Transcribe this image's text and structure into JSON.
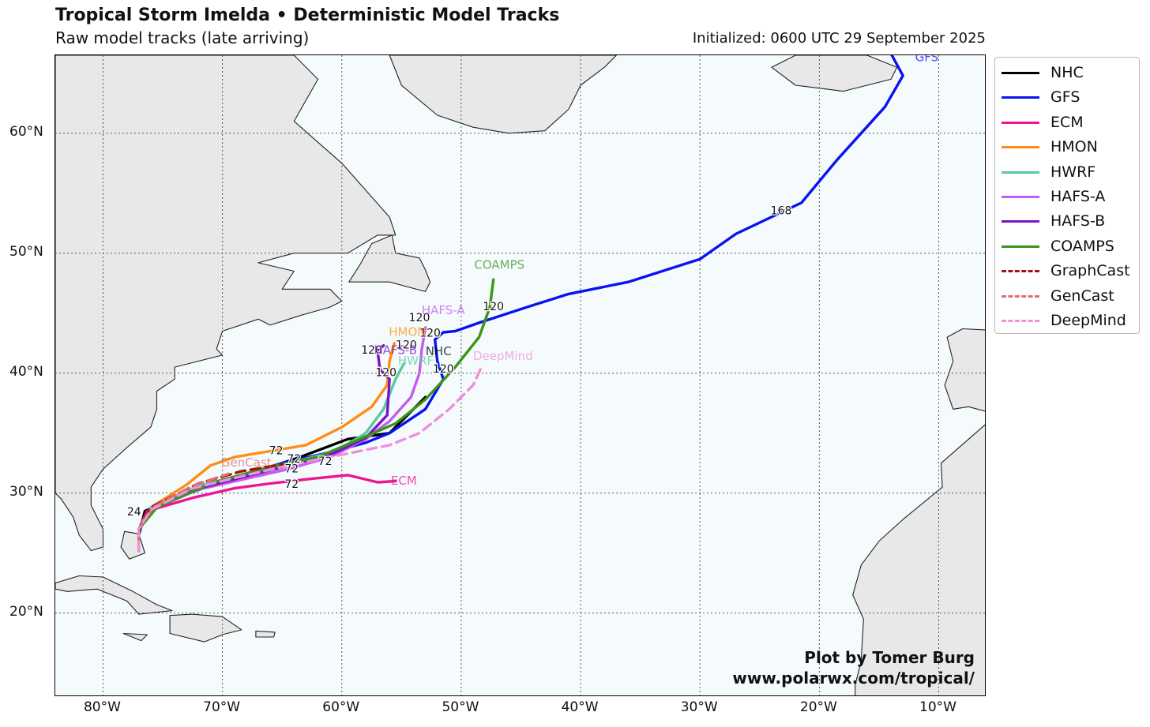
{
  "header": {
    "title": "Tropical Storm Imelda • Deterministic Model Tracks",
    "subtitle": "Raw model tracks (late arriving)",
    "initialized": "Initialized: 0600 UTC 29 September 2025"
  },
  "axes": {
    "lat_labels": [
      "20°N",
      "30°N",
      "40°N",
      "50°N",
      "60°N"
    ],
    "lon_labels": [
      "80°W",
      "70°W",
      "60°W",
      "50°W",
      "40°W",
      "30°W",
      "20°W",
      "10°W"
    ],
    "lon_range": [
      -84,
      -6
    ],
    "lat_range": [
      13,
      66.5
    ],
    "grid": "dotted"
  },
  "legend": {
    "items": [
      {
        "name": "NHC",
        "color": "#000000",
        "style": "solid"
      },
      {
        "name": "GFS",
        "color": "#0a12f0",
        "style": "solid"
      },
      {
        "name": "ECM",
        "color": "#ee1493",
        "style": "solid"
      },
      {
        "name": "HMON",
        "color": "#ff8c14",
        "style": "solid"
      },
      {
        "name": "HWRF",
        "color": "#5cc9a0",
        "style": "solid"
      },
      {
        "name": "HAFS-A",
        "color": "#c45cf0",
        "style": "solid"
      },
      {
        "name": "HAFS-B",
        "color": "#7a14c4",
        "style": "solid"
      },
      {
        "name": "COAMPS",
        "color": "#3a9418",
        "style": "solid"
      },
      {
        "name": "GraphCast",
        "color": "#a01414",
        "style": "dashed"
      },
      {
        "name": "GenCast",
        "color": "#dc6e78",
        "style": "dashed"
      },
      {
        "name": "DeepMind",
        "color": "#ee90dc",
        "style": "dashed"
      }
    ]
  },
  "credit": {
    "line1": "Plot by Tomer Burg",
    "line2": "www.polarwx.com/tropical/"
  },
  "tracks": [
    {
      "model": "NHC",
      "color": "#000000",
      "style": "solid",
      "points": [
        [
          -77.0,
          25.2
        ],
        [
          -77.0,
          26.5
        ],
        [
          -76.5,
          28.5
        ],
        [
          -72.0,
          30.5
        ],
        [
          -68.0,
          31.5
        ],
        [
          -63.5,
          33.0
        ],
        [
          -59.5,
          34.5
        ],
        [
          -56.0,
          35.0
        ],
        [
          -54.5,
          36.5
        ],
        [
          -53.0,
          38.0
        ]
      ],
      "labels": [
        {
          "text": "24",
          "lon": -77.4,
          "lat": 28.4
        },
        {
          "text": "72",
          "lon": -64.0,
          "lat": 32.8
        },
        {
          "text": "NHC",
          "lon": -51.9,
          "lat": 41.8
        }
      ]
    },
    {
      "model": "GFS",
      "color": "#0a12f0",
      "style": "solid",
      "points": [
        [
          -77.0,
          25.2
        ],
        [
          -77.0,
          27.0
        ],
        [
          -76.0,
          28.8
        ],
        [
          -70.0,
          31.0
        ],
        [
          -65.0,
          32.5
        ],
        [
          -61.0,
          33.4
        ],
        [
          -58.0,
          34.2
        ],
        [
          -56.0,
          35.0
        ],
        [
          -53.0,
          37.0
        ],
        [
          -51.5,
          39.5
        ],
        [
          -52.0,
          41.0
        ],
        [
          -52.2,
          42.8
        ],
        [
          -51.5,
          43.4
        ],
        [
          -50.5,
          43.5
        ],
        [
          -48.5,
          44.2
        ],
        [
          -44.5,
          45.5
        ],
        [
          -41.0,
          46.6
        ],
        [
          -36.0,
          47.6
        ],
        [
          -30.0,
          49.5
        ],
        [
          -27.0,
          51.6
        ],
        [
          -21.5,
          54.2
        ],
        [
          -18.5,
          57.8
        ],
        [
          -14.5,
          62.2
        ],
        [
          -13.0,
          64.8
        ],
        [
          -14.2,
          67.0
        ]
      ],
      "labels": [
        {
          "text": "72",
          "lon": -64.2,
          "lat": 32.0
        },
        {
          "text": "120",
          "lon": -51.5,
          "lat": 40.3
        },
        {
          "text": "120",
          "lon": -52.6,
          "lat": 43.3
        },
        {
          "text": "168",
          "lon": -23.2,
          "lat": 53.5
        },
        {
          "text": "GFS",
          "lon": -11.0,
          "lat": 66.3
        }
      ]
    },
    {
      "model": "ECM",
      "color": "#ee1493",
      "style": "solid",
      "points": [
        [
          -77.0,
          25.2
        ],
        [
          -77.0,
          27.0
        ],
        [
          -76.3,
          28.5
        ],
        [
          -72.5,
          29.6
        ],
        [
          -69.0,
          30.4
        ],
        [
          -66.0,
          30.8
        ],
        [
          -62.5,
          31.2
        ],
        [
          -59.5,
          31.5
        ],
        [
          -57.0,
          30.9
        ],
        [
          -55.5,
          31.0
        ]
      ],
      "labels": [
        {
          "text": "72",
          "lon": -64.2,
          "lat": 30.7
        },
        {
          "text": "ECM",
          "lon": -54.8,
          "lat": 31.0
        }
      ]
    },
    {
      "model": "HMON",
      "color": "#ff8c14",
      "style": "solid",
      "points": [
        [
          -77.0,
          25.5
        ],
        [
          -77.0,
          27.0
        ],
        [
          -76.0,
          28.8
        ],
        [
          -73.0,
          30.7
        ],
        [
          -71.0,
          32.3
        ],
        [
          -69.0,
          33.0
        ],
        [
          -66.0,
          33.5
        ],
        [
          -63.0,
          34.0
        ],
        [
          -60.0,
          35.5
        ],
        [
          -57.5,
          37.2
        ],
        [
          -56.2,
          39.0
        ],
        [
          -56.0,
          41.0
        ],
        [
          -55.6,
          42.5
        ]
      ],
      "labels": [
        {
          "text": "72",
          "lon": -65.5,
          "lat": 33.5
        },
        {
          "text": "120",
          "lon": -54.6,
          "lat": 42.3
        },
        {
          "text": "HMON",
          "lon": -54.5,
          "lat": 43.4
        }
      ]
    },
    {
      "model": "HWRF",
      "color": "#5cc9a0",
      "style": "solid",
      "points": [
        [
          -77.0,
          25.5
        ],
        [
          -77.0,
          27.0
        ],
        [
          -76.0,
          28.8
        ],
        [
          -72.0,
          30.6
        ],
        [
          -68.0,
          31.6
        ],
        [
          -64.0,
          32.6
        ],
        [
          -60.5,
          33.5
        ],
        [
          -58.0,
          35.0
        ],
        [
          -56.5,
          37.0
        ],
        [
          -55.5,
          39.5
        ],
        [
          -54.8,
          40.8
        ]
      ],
      "labels": [
        {
          "text": "HWRF",
          "lon": -53.8,
          "lat": 41.0
        }
      ]
    },
    {
      "model": "HAFS-A",
      "color": "#c45cf0",
      "style": "solid",
      "points": [
        [
          -77.0,
          25.2
        ],
        [
          -77.0,
          27.0
        ],
        [
          -76.0,
          28.6
        ],
        [
          -72.0,
          30.3
        ],
        [
          -68.0,
          31.2
        ],
        [
          -64.5,
          32.0
        ],
        [
          -61.0,
          33.0
        ],
        [
          -58.0,
          34.5
        ],
        [
          -56.0,
          36.0
        ],
        [
          -54.2,
          38.0
        ],
        [
          -53.5,
          40.0
        ],
        [
          -53.3,
          42.0
        ],
        [
          -53.0,
          43.8
        ]
      ],
      "labels": [
        {
          "text": "120",
          "lon": -53.5,
          "lat": 44.6
        },
        {
          "text": "HAFS-A",
          "lon": -51.5,
          "lat": 45.2
        }
      ]
    },
    {
      "model": "HAFS-B",
      "color": "#7a14c4",
      "style": "solid",
      "points": [
        [
          -77.0,
          25.2
        ],
        [
          -77.0,
          27.0
        ],
        [
          -76.0,
          28.6
        ],
        [
          -72.0,
          30.4
        ],
        [
          -68.0,
          31.4
        ],
        [
          -64.0,
          32.4
        ],
        [
          -60.5,
          33.4
        ],
        [
          -58.0,
          34.6
        ],
        [
          -56.2,
          36.5
        ],
        [
          -56.0,
          39.5
        ],
        [
          -56.8,
          40.3
        ],
        [
          -57.0,
          41.8
        ],
        [
          -56.5,
          42.3
        ]
      ],
      "labels": [
        {
          "text": "120",
          "lon": -56.3,
          "lat": 40.0
        },
        {
          "text": "120",
          "lon": -57.5,
          "lat": 41.9
        },
        {
          "text": "HAFS-B",
          "lon": -55.5,
          "lat": 41.9
        }
      ]
    },
    {
      "model": "COAMPS",
      "color": "#3a9418",
      "style": "solid",
      "points": [
        [
          -77.0,
          25.5
        ],
        [
          -77.0,
          27.0
        ],
        [
          -75.5,
          28.8
        ],
        [
          -71.0,
          30.8
        ],
        [
          -66.0,
          32.2
        ],
        [
          -62.0,
          33.0
        ],
        [
          -58.5,
          34.5
        ],
        [
          -55.5,
          35.8
        ],
        [
          -53.0,
          37.8
        ],
        [
          -50.5,
          40.5
        ],
        [
          -48.5,
          43.0
        ],
        [
          -47.6,
          45.5
        ],
        [
          -47.3,
          47.8
        ]
      ],
      "labels": [
        {
          "text": "72",
          "lon": -61.4,
          "lat": 32.6
        },
        {
          "text": "120",
          "lon": -47.3,
          "lat": 45.5
        },
        {
          "text": "COAMPS",
          "lon": -46.8,
          "lat": 49.0
        }
      ]
    },
    {
      "model": "GraphCast",
      "color": "#a01414",
      "style": "dashed",
      "points": [
        [
          -77.0,
          25.5
        ],
        [
          -77.0,
          27.0
        ],
        [
          -76.0,
          28.8
        ],
        [
          -72.0,
          30.8
        ],
        [
          -68.5,
          31.8
        ],
        [
          -65.0,
          32.4
        ]
      ],
      "labels": []
    },
    {
      "model": "GenCast",
      "color": "#dc6e78",
      "style": "dashed",
      "points": [
        [
          -77.0,
          25.5
        ],
        [
          -77.0,
          27.0
        ],
        [
          -75.8,
          28.8
        ],
        [
          -72.5,
          30.6
        ],
        [
          -69.5,
          31.6
        ]
      ],
      "labels": [
        {
          "text": "GenCast",
          "lon": -68.0,
          "lat": 32.5
        }
      ]
    },
    {
      "model": "DeepMind",
      "color": "#ee90dc",
      "style": "dashed",
      "points": [
        [
          -77.0,
          25.2
        ],
        [
          -77.0,
          27.0
        ],
        [
          -76.0,
          28.6
        ],
        [
          -72.5,
          30.4
        ],
        [
          -68.0,
          31.5
        ],
        [
          -64.0,
          32.4
        ],
        [
          -60.0,
          33.2
        ],
        [
          -56.0,
          34.0
        ],
        [
          -53.5,
          35.0
        ],
        [
          -51.0,
          37.0
        ],
        [
          -49.0,
          39.0
        ],
        [
          -48.3,
          40.5
        ]
      ],
      "labels": [
        {
          "text": "DeepMind",
          "lon": -46.5,
          "lat": 41.4
        }
      ]
    }
  ],
  "land": [
    {
      "name": "North America",
      "points": [
        [
          -84,
          66.5
        ],
        [
          -64,
          66.5
        ],
        [
          -62,
          64.5
        ],
        [
          -64,
          61
        ],
        [
          -60,
          57.5
        ],
        [
          -56,
          53
        ],
        [
          -55.5,
          51.5
        ],
        [
          -57,
          51.5
        ],
        [
          -59.5,
          50
        ],
        [
          -64,
          50
        ],
        [
          -67,
          49.2
        ],
        [
          -64,
          48.5
        ],
        [
          -65,
          47
        ],
        [
          -61,
          47
        ],
        [
          -60,
          46
        ],
        [
          -61,
          45.5
        ],
        [
          -63.5,
          44.8
        ],
        [
          -66,
          44
        ],
        [
          -67,
          44.5
        ],
        [
          -70,
          43.5
        ],
        [
          -70.5,
          42
        ],
        [
          -70,
          41.5
        ],
        [
          -72,
          41
        ],
        [
          -74,
          40.5
        ],
        [
          -74,
          39.5
        ],
        [
          -75.5,
          38.5
        ],
        [
          -75.5,
          37
        ],
        [
          -76,
          35.5
        ],
        [
          -78,
          33.8
        ],
        [
          -80,
          32
        ],
        [
          -81,
          30.5
        ],
        [
          -81,
          29
        ],
        [
          -80,
          27
        ],
        [
          -80,
          25.5
        ],
        [
          -81,
          25.2
        ],
        [
          -82,
          26.5
        ],
        [
          -82.5,
          28
        ],
        [
          -83.5,
          29.5
        ],
        [
          -84,
          30
        ],
        [
          -84,
          66.5
        ]
      ]
    },
    {
      "name": "Newfoundland",
      "points": [
        [
          -59.4,
          47.6
        ],
        [
          -56,
          47.6
        ],
        [
          -53,
          46.8
        ],
        [
          -52.6,
          47.6
        ],
        [
          -53,
          48.6
        ],
        [
          -53.5,
          49.6
        ],
        [
          -55.5,
          50
        ],
        [
          -55.8,
          51.5
        ],
        [
          -57.5,
          50.8
        ],
        [
          -58.5,
          49
        ],
        [
          -59.4,
          47.6
        ]
      ]
    },
    {
      "name": "Greenland",
      "points": [
        [
          -56,
          66.5
        ],
        [
          -55,
          64
        ],
        [
          -52,
          61.5
        ],
        [
          -49,
          60.5
        ],
        [
          -46,
          60
        ],
        [
          -43,
          60.2
        ],
        [
          -41,
          62
        ],
        [
          -40,
          64
        ],
        [
          -38,
          65.5
        ],
        [
          -37,
          66.5
        ],
        [
          -56,
          66.5
        ]
      ]
    },
    {
      "name": "Iceland",
      "points": [
        [
          -24,
          65.5
        ],
        [
          -22,
          64
        ],
        [
          -18,
          63.5
        ],
        [
          -14,
          64.5
        ],
        [
          -13.5,
          65.5
        ],
        [
          -16,
          66.5
        ],
        [
          -22,
          66.5
        ],
        [
          -24,
          65.5
        ]
      ]
    },
    {
      "name": "Iberia",
      "points": [
        [
          -6,
          43.6
        ],
        [
          -8,
          43.7
        ],
        [
          -9.3,
          43
        ],
        [
          -8.8,
          41
        ],
        [
          -9.5,
          39
        ],
        [
          -8.8,
          37
        ],
        [
          -7.5,
          37.2
        ],
        [
          -6,
          36.8
        ],
        [
          -6,
          43.6
        ]
      ]
    },
    {
      "name": "Africa",
      "points": [
        [
          -6,
          35.8
        ],
        [
          -9.8,
          32.5
        ],
        [
          -9.7,
          30.5
        ],
        [
          -13,
          27.8
        ],
        [
          -15,
          26
        ],
        [
          -16.5,
          24
        ],
        [
          -17.2,
          21.5
        ],
        [
          -16.3,
          19.5
        ],
        [
          -16.5,
          16
        ],
        [
          -17,
          14
        ],
        [
          -17,
          13
        ],
        [
          -6,
          13
        ],
        [
          -6,
          35.8
        ]
      ]
    },
    {
      "name": "Cuba",
      "points": [
        [
          -84,
          22.5
        ],
        [
          -82,
          23.1
        ],
        [
          -80,
          23
        ],
        [
          -77.5,
          21.8
        ],
        [
          -75.5,
          20.7
        ],
        [
          -74.2,
          20.2
        ],
        [
          -77,
          19.9
        ],
        [
          -78,
          21
        ],
        [
          -80.5,
          22
        ],
        [
          -83,
          21.8
        ],
        [
          -84,
          22
        ]
      ]
    },
    {
      "name": "Hispaniola",
      "points": [
        [
          -74.4,
          19.8
        ],
        [
          -72.5,
          19.9
        ],
        [
          -70,
          19.7
        ],
        [
          -68.4,
          18.6
        ],
        [
          -70,
          18.2
        ],
        [
          -71.5,
          17.6
        ],
        [
          -74.4,
          18.3
        ],
        [
          -74.4,
          19.8
        ]
      ]
    },
    {
      "name": "Jamaica",
      "points": [
        [
          -78.3,
          18.3
        ],
        [
          -76.3,
          18.2
        ],
        [
          -76.8,
          17.7
        ],
        [
          -78.3,
          18.3
        ]
      ]
    },
    {
      "name": "Puerto Rico",
      "points": [
        [
          -67.2,
          18.5
        ],
        [
          -65.6,
          18.4
        ],
        [
          -65.7,
          18
        ],
        [
          -67.2,
          18
        ]
      ]
    },
    {
      "name": "Bahamas",
      "points": [
        [
          -78.2,
          26.8
        ],
        [
          -77,
          26.6
        ],
        [
          -76.5,
          25
        ],
        [
          -77.8,
          24.5
        ],
        [
          -78.5,
          25.5
        ],
        [
          -78.2,
          26.8
        ]
      ]
    }
  ]
}
